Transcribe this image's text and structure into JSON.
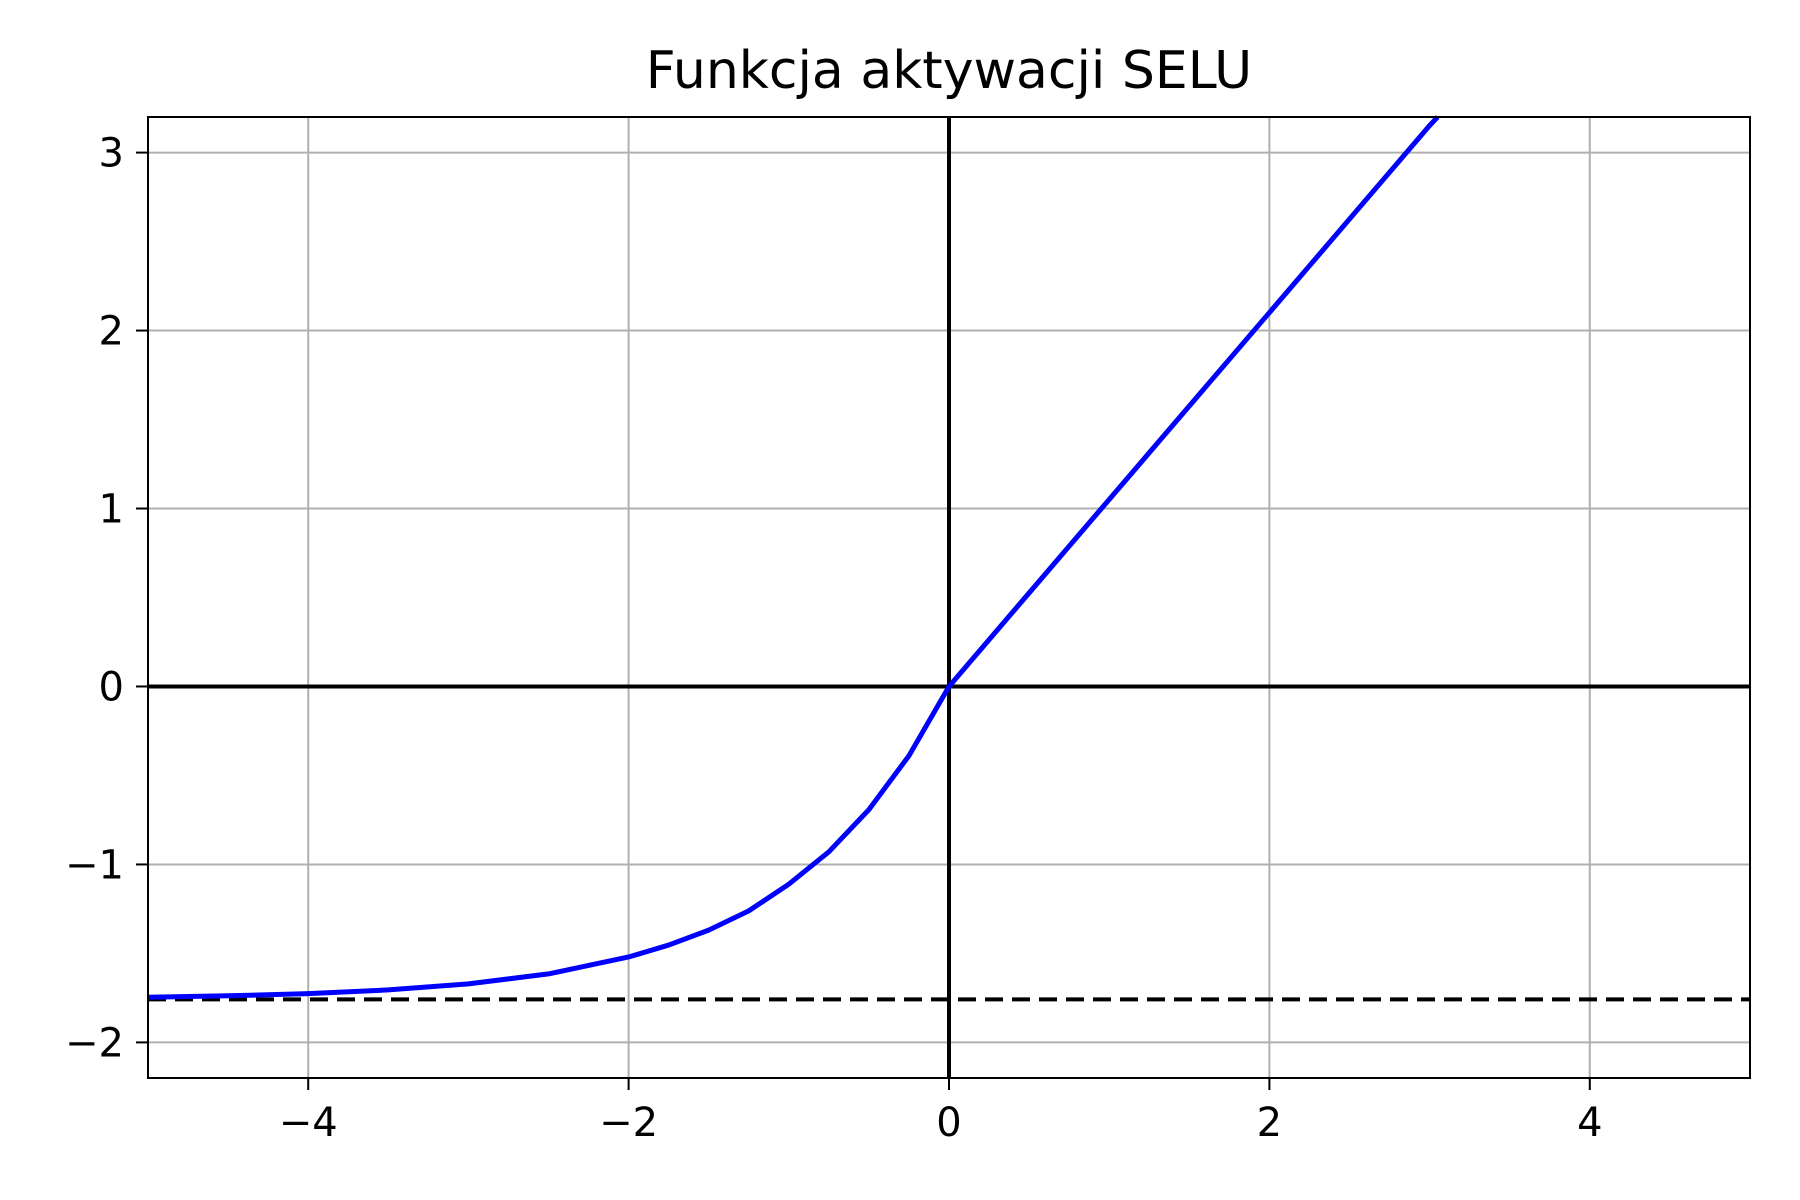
{
  "chart_data": {
    "type": "line",
    "title": "Funkcja aktywacji SELU",
    "xlabel": "",
    "ylabel": "",
    "xlim": [
      -5,
      5
    ],
    "ylim": [
      -2.2,
      3.2
    ],
    "grid": true,
    "x_ticks": [
      -4,
      -2,
      0,
      2,
      4
    ],
    "x_tick_labels": [
      "−4",
      "−2",
      "0",
      "2",
      "4"
    ],
    "y_ticks": [
      -2,
      -1,
      0,
      1,
      2,
      3
    ],
    "y_tick_labels": [
      "−2",
      "−1",
      "0",
      "1",
      "2",
      "3"
    ],
    "series": [
      {
        "color": "#0000ff",
        "x": [
          -5,
          -4.5,
          -4,
          -3.5,
          -3,
          -2.5,
          -2,
          -1.75,
          -1.5,
          -1.25,
          -1,
          -0.75,
          -0.5,
          -0.25,
          0,
          1,
          2,
          3,
          3.05
        ],
        "y": [
          -1.746,
          -1.738,
          -1.726,
          -1.705,
          -1.671,
          -1.615,
          -1.52,
          -1.453,
          -1.369,
          -1.261,
          -1.111,
          -0.929,
          -0.692,
          -0.389,
          0,
          1.051,
          2.101,
          3.152,
          3.2
        ]
      }
    ],
    "reference_lines": [
      {
        "orientation": "horizontal",
        "value": 0,
        "style": "solid",
        "color": "#000000"
      },
      {
        "orientation": "vertical",
        "value": 0,
        "style": "solid",
        "color": "#000000"
      },
      {
        "orientation": "horizontal",
        "value": -1.758,
        "style": "dashed",
        "color": "#000000"
      }
    ]
  }
}
